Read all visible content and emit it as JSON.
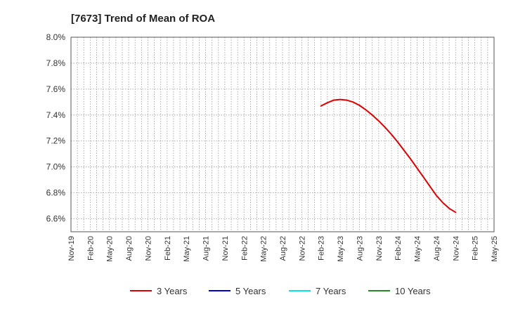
{
  "chart_data": {
    "type": "line",
    "title": "[7673]  Trend of Mean of ROA",
    "xlabel": "",
    "ylabel": "",
    "y_unit": "%",
    "ylim": [
      6.5,
      8.0
    ],
    "y_ticks": [
      6.6,
      6.8,
      7.0,
      7.2,
      7.4,
      7.6,
      7.8,
      8.0
    ],
    "y_tick_labels": [
      "6.6%",
      "6.8%",
      "7.0%",
      "7.2%",
      "7.4%",
      "7.6%",
      "7.8%",
      "8.0%"
    ],
    "x_tick_labels": [
      "Nov-19",
      "Feb-20",
      "May-20",
      "Aug-20",
      "Nov-20",
      "Feb-21",
      "May-21",
      "Aug-21",
      "Nov-21",
      "Feb-22",
      "May-22",
      "Aug-22",
      "Nov-22",
      "Feb-23",
      "May-23",
      "Aug-23",
      "Nov-23",
      "Feb-24",
      "May-24",
      "Aug-24",
      "Nov-24",
      "Feb-25",
      "May-25"
    ],
    "x_start": "2019-11",
    "x_end": "2025-05",
    "grid": true,
    "legend_position": "bottom",
    "series": [
      {
        "name": "3 Years",
        "color": "#dd0000",
        "x": [
          "2023-02",
          "2023-03",
          "2023-04",
          "2023-05",
          "2023-06",
          "2023-07",
          "2023-08",
          "2023-09",
          "2023-10",
          "2023-11",
          "2023-12",
          "2024-01",
          "2024-02",
          "2024-03",
          "2024-04",
          "2024-05",
          "2024-06",
          "2024-07",
          "2024-08",
          "2024-09",
          "2024-10",
          "2024-11"
        ],
        "values": [
          7.47,
          7.495,
          7.515,
          7.52,
          7.515,
          7.5,
          7.475,
          7.44,
          7.4,
          7.355,
          7.305,
          7.25,
          7.19,
          7.125,
          7.06,
          6.99,
          6.92,
          6.85,
          6.78,
          6.725,
          6.68,
          6.65
        ]
      },
      {
        "name": "5 Years",
        "color": "#0000cc",
        "x": [],
        "values": []
      },
      {
        "name": "7 Years",
        "color": "#00e5ee",
        "x": [],
        "values": []
      },
      {
        "name": "10 Years",
        "color": "#228b22",
        "x": [],
        "values": []
      }
    ]
  }
}
